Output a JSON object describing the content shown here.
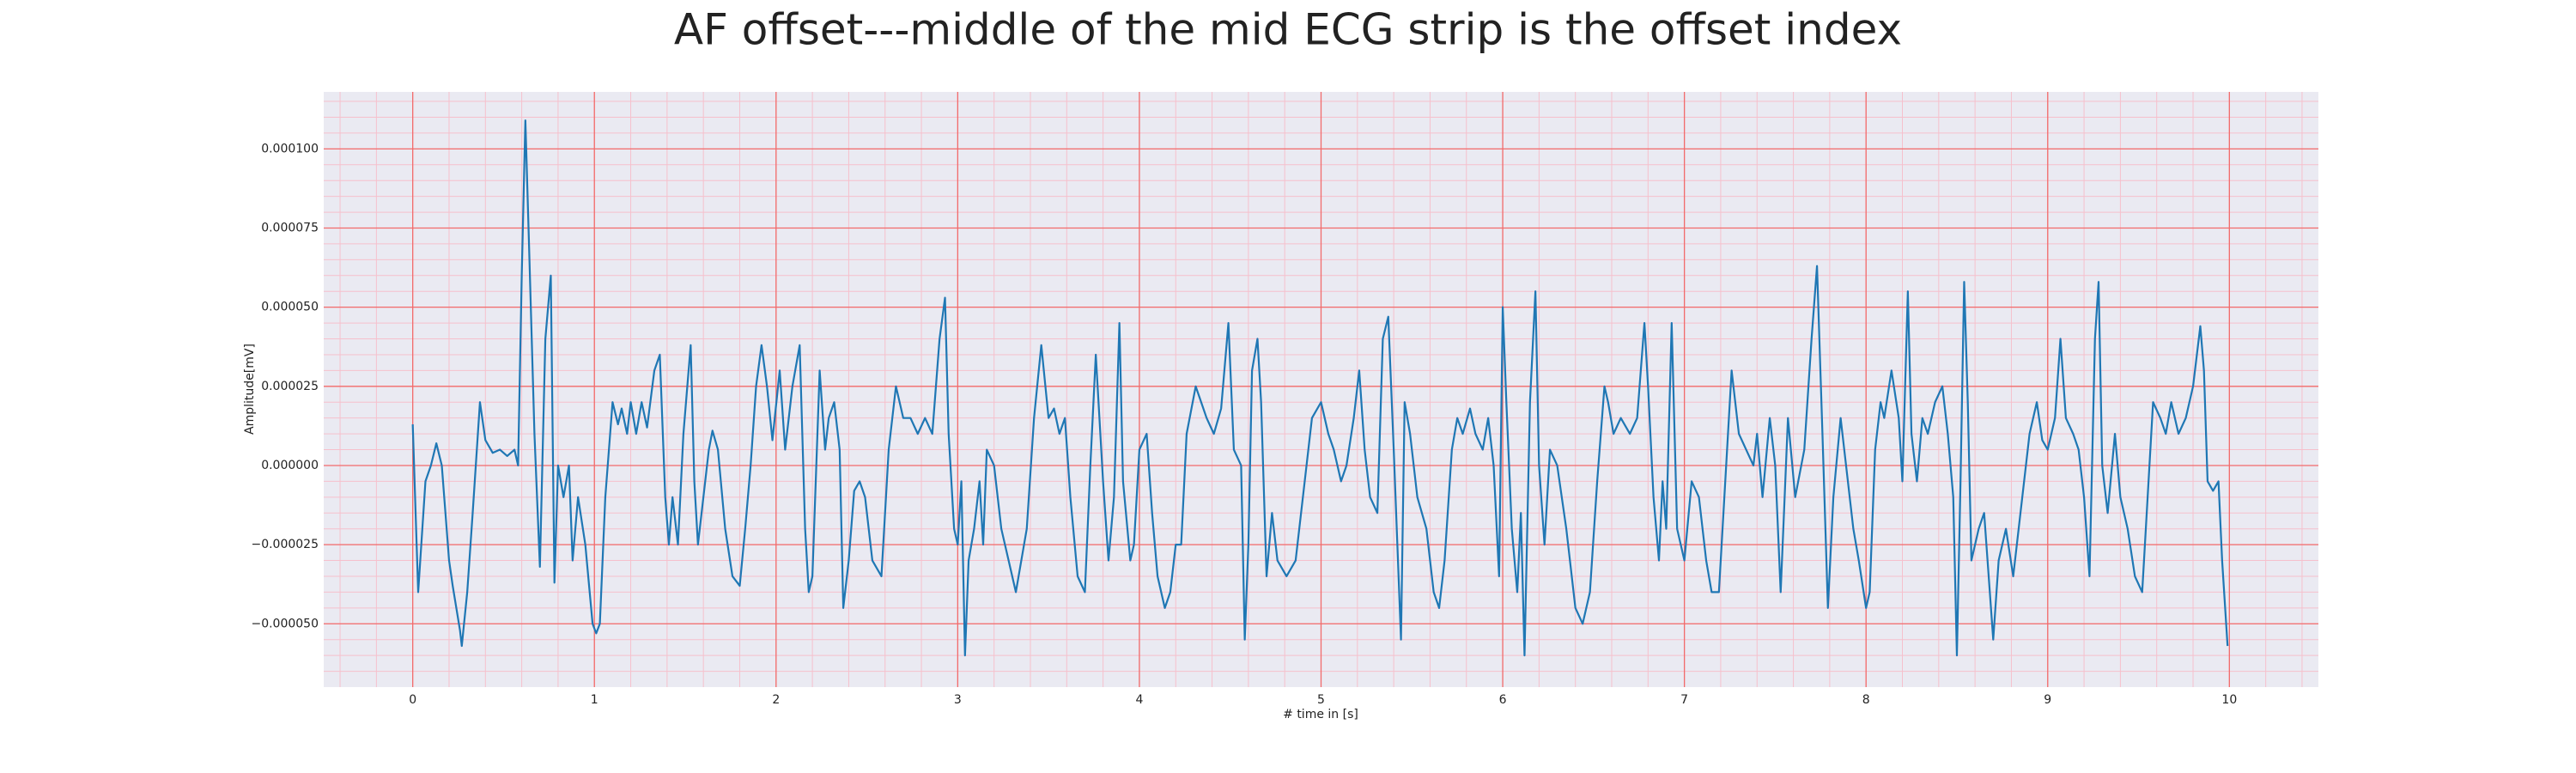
{
  "chart_data": {
    "type": "line",
    "title": "AF offset---middle of the mid ECG strip is the offset index",
    "xlabel": "# time in [s]",
    "ylabel": "Amplitude[mV]",
    "color": "#1f77b4",
    "grid": true,
    "minor_grid": true,
    "xlim": [
      -0.49,
      10.49
    ],
    "ylim": [
      -7e-05,
      0.000118
    ],
    "xticks": [
      0,
      1,
      2,
      3,
      4,
      5,
      6,
      7,
      8,
      9,
      10
    ],
    "yticks": [
      {
        "value": -5e-05,
        "label": "−0.000050"
      },
      {
        "value": -2.5e-05,
        "label": "−0.000025"
      },
      {
        "value": 0,
        "label": "0.000000"
      },
      {
        "value": 2.5e-05,
        "label": "0.000025"
      },
      {
        "value": 5e-05,
        "label": "0.000050"
      },
      {
        "value": 7.5e-05,
        "label": "0.000075"
      },
      {
        "value": 0.0001,
        "label": "0.000100"
      }
    ],
    "x": [
      0.0,
      0.03,
      0.07,
      0.1,
      0.13,
      0.16,
      0.2,
      0.22,
      0.26,
      0.27,
      0.3,
      0.33,
      0.37,
      0.4,
      0.44,
      0.48,
      0.52,
      0.56,
      0.58,
      0.6,
      0.62,
      0.64,
      0.67,
      0.7,
      0.73,
      0.76,
      0.78,
      0.8,
      0.83,
      0.86,
      0.88,
      0.91,
      0.95,
      0.99,
      1.01,
      1.03,
      1.06,
      1.1,
      1.13,
      1.15,
      1.18,
      1.2,
      1.23,
      1.26,
      1.29,
      1.33,
      1.36,
      1.39,
      1.41,
      1.43,
      1.46,
      1.49,
      1.53,
      1.55,
      1.57,
      1.6,
      1.63,
      1.65,
      1.68,
      1.72,
      1.76,
      1.8,
      1.83,
      1.86,
      1.89,
      1.92,
      1.95,
      1.98,
      2.02,
      2.05,
      2.09,
      2.13,
      2.16,
      2.18,
      2.2,
      2.24,
      2.27,
      2.29,
      2.32,
      2.35,
      2.37,
      2.4,
      2.43,
      2.46,
      2.49,
      2.53,
      2.58,
      2.62,
      2.66,
      2.7,
      2.74,
      2.78,
      2.82,
      2.86,
      2.9,
      2.93,
      2.95,
      2.98,
      3.0,
      3.02,
      3.04,
      3.06,
      3.09,
      3.12,
      3.14,
      3.16,
      3.2,
      3.24,
      3.28,
      3.32,
      3.38,
      3.42,
      3.46,
      3.5,
      3.53,
      3.56,
      3.59,
      3.62,
      3.66,
      3.7,
      3.73,
      3.76,
      3.78,
      3.8,
      3.83,
      3.86,
      3.89,
      3.91,
      3.95,
      3.97,
      4.0,
      4.04,
      4.07,
      4.1,
      4.14,
      4.17,
      4.2,
      4.23,
      4.26,
      4.31,
      4.34,
      4.37,
      4.41,
      4.45,
      4.49,
      4.52,
      4.56,
      4.58,
      4.6,
      4.62,
      4.65,
      4.67,
      4.7,
      4.73,
      4.76,
      4.81,
      4.86,
      4.9,
      4.95,
      5.0,
      5.04,
      5.07,
      5.11,
      5.14,
      5.18,
      5.21,
      5.24,
      5.27,
      5.31,
      5.34,
      5.37,
      5.4,
      5.44,
      5.46,
      5.49,
      5.53,
      5.58,
      5.62,
      5.65,
      5.68,
      5.72,
      5.75,
      5.78,
      5.82,
      5.85,
      5.89,
      5.92,
      5.95,
      5.98,
      6.0,
      6.02,
      6.05,
      6.08,
      6.1,
      6.12,
      6.15,
      6.18,
      6.2,
      6.23,
      6.26,
      6.3,
      6.35,
      6.4,
      6.44,
      6.48,
      6.52,
      6.56,
      6.58,
      6.61,
      6.65,
      6.7,
      6.74,
      6.78,
      6.8,
      6.83,
      6.86,
      6.88,
      6.9,
      6.93,
      6.96,
      7.0,
      7.04,
      7.08,
      7.12,
      7.15,
      7.19,
      7.22,
      7.26,
      7.3,
      7.34,
      7.38,
      7.4,
      7.43,
      7.47,
      7.5,
      7.53,
      7.57,
      7.61,
      7.66,
      7.7,
      7.73,
      7.76,
      7.79,
      7.82,
      7.86,
      7.89,
      7.93,
      7.96,
      8.0,
      8.02,
      8.05,
      8.08,
      8.1,
      8.14,
      8.18,
      8.2,
      8.23,
      8.25,
      8.28,
      8.31,
      8.34,
      8.38,
      8.42,
      8.45,
      8.48,
      8.5,
      8.52,
      8.54,
      8.56,
      8.58,
      8.62,
      8.65,
      8.7,
      8.73,
      8.77,
      8.81,
      8.85,
      8.9,
      8.94,
      8.97,
      9.0,
      9.04,
      9.07,
      9.1,
      9.14,
      9.17,
      9.2,
      9.23,
      9.26,
      9.28,
      9.3,
      9.33,
      9.37,
      9.4,
      9.44,
      9.48,
      9.52,
      9.55,
      9.58,
      9.62,
      9.65,
      9.68,
      9.72,
      9.76,
      9.8,
      9.84,
      9.86,
      9.88,
      9.91,
      9.94,
      9.96,
      9.99
    ],
    "values": [
      1.3e-05,
      -4e-05,
      -5e-06,
      0,
      7e-06,
      0,
      -3e-05,
      -3.8e-05,
      -5.2e-05,
      -5.7e-05,
      -4e-05,
      -1.5e-05,
      2e-05,
      8e-06,
      4e-06,
      5e-06,
      3e-06,
      5e-06,
      0,
      6e-05,
      0.000109,
      7e-05,
      1e-05,
      -3.2e-05,
      4e-05,
      6e-05,
      -3.7e-05,
      0,
      -1e-05,
      0,
      -3e-05,
      -1e-05,
      -2.5e-05,
      -5e-05,
      -5.3e-05,
      -5e-05,
      -1e-05,
      2e-05,
      1.3e-05,
      1.8e-05,
      1e-05,
      2e-05,
      1e-05,
      2e-05,
      1.2e-05,
      3e-05,
      3.5e-05,
      -1e-05,
      -2.5e-05,
      -1e-05,
      -2.5e-05,
      1e-05,
      3.8e-05,
      -5e-06,
      -2.5e-05,
      -1e-05,
      5e-06,
      1.1e-05,
      5e-06,
      -2e-05,
      -3.5e-05,
      -3.8e-05,
      -2e-05,
      0,
      2.5e-05,
      3.8e-05,
      2.5e-05,
      8e-06,
      3e-05,
      5e-06,
      2.5e-05,
      3.8e-05,
      -2e-05,
      -4e-05,
      -3.5e-05,
      3e-05,
      5e-06,
      1.5e-05,
      2e-05,
      5e-06,
      -4.5e-05,
      -3e-05,
      -8e-06,
      -5e-06,
      -1e-05,
      -3e-05,
      -3.5e-05,
      5e-06,
      2.5e-05,
      1.5e-05,
      1.5e-05,
      1e-05,
      1.5e-05,
      1e-05,
      4e-05,
      5.3e-05,
      1e-05,
      -2e-05,
      -2.5e-05,
      -5e-06,
      -6e-05,
      -3e-05,
      -2e-05,
      -5e-06,
      -2.5e-05,
      5e-06,
      0,
      -2e-05,
      -3e-05,
      -4e-05,
      -2e-05,
      1.5e-05,
      3.8e-05,
      1.5e-05,
      1.8e-05,
      1e-05,
      1.5e-05,
      -1e-05,
      -3.5e-05,
      -4e-05,
      0,
      3.5e-05,
      1.5e-05,
      -5e-06,
      -3e-05,
      -1e-05,
      4.5e-05,
      -5e-06,
      -3e-05,
      -2.5e-05,
      5e-06,
      1e-05,
      -1.5e-05,
      -3.5e-05,
      -4.5e-05,
      -4e-05,
      -2.5e-05,
      -2.5e-05,
      1e-05,
      2.5e-05,
      2e-05,
      1.5e-05,
      1e-05,
      1.8e-05,
      4.5e-05,
      5e-06,
      0,
      -5.5e-05,
      -2.5e-05,
      3e-05,
      4e-05,
      2e-05,
      -3.5e-05,
      -1.5e-05,
      -3e-05,
      -3.5e-05,
      -3e-05,
      -1e-05,
      1.5e-05,
      2e-05,
      1e-05,
      5e-06,
      -5e-06,
      0,
      1.5e-05,
      3e-05,
      5e-06,
      -1e-05,
      -1.5e-05,
      4e-05,
      4.7e-05,
      5e-06,
      -5.5e-05,
      2e-05,
      1e-05,
      -1e-05,
      -2e-05,
      -4e-05,
      -4.5e-05,
      -3e-05,
      5e-06,
      1.5e-05,
      1e-05,
      1.8e-05,
      1e-05,
      5e-06,
      1.5e-05,
      0,
      -3.5e-05,
      5e-05,
      2e-05,
      -2e-05,
      -4e-05,
      -1.5e-05,
      -6e-05,
      2e-05,
      5.5e-05,
      0,
      -2.5e-05,
      5e-06,
      0,
      -2e-05,
      -4.5e-05,
      -5e-05,
      -4e-05,
      -5e-06,
      2.5e-05,
      2e-05,
      1e-05,
      1.5e-05,
      1e-05,
      1.5e-05,
      4.5e-05,
      2.5e-05,
      -1e-05,
      -3e-05,
      -5e-06,
      -2e-05,
      4.5e-05,
      -2e-05,
      -3e-05,
      -5e-06,
      -1e-05,
      -3e-05,
      -4e-05,
      -4e-05,
      -1e-05,
      3e-05,
      1e-05,
      5e-06,
      0,
      1e-05,
      -1e-05,
      1.5e-05,
      0,
      -4e-05,
      1.5e-05,
      -1e-05,
      5e-06,
      4e-05,
      6.3e-05,
      1e-05,
      -4.5e-05,
      -1e-05,
      1.5e-05,
      0,
      -2e-05,
      -3e-05,
      -4.5e-05,
      -4e-05,
      5e-06,
      2e-05,
      1.5e-05,
      3e-05,
      1.5e-05,
      -5e-06,
      5.5e-05,
      1e-05,
      -5e-06,
      1.5e-05,
      1e-05,
      2e-05,
      2.5e-05,
      1e-05,
      -1e-05,
      -6e-05,
      -5e-06,
      5.8e-05,
      2e-05,
      -3e-05,
      -2e-05,
      -1.5e-05,
      -5.5e-05,
      -3e-05,
      -2e-05,
      -3.5e-05,
      -1.5e-05,
      1e-05,
      2e-05,
      8e-06,
      5e-06,
      1.5e-05,
      4e-05,
      1.5e-05,
      1e-05,
      5e-06,
      -1e-05,
      -3.5e-05,
      4e-05,
      5.8e-05,
      0,
      -1.5e-05,
      1e-05,
      -1e-05,
      -2e-05,
      -3.5e-05,
      -4e-05,
      -1e-05,
      2e-05,
      1.5e-05,
      1e-05,
      2e-05,
      1e-05,
      1.5e-05,
      2.5e-05,
      4.4e-05,
      3e-05,
      -5e-06,
      -8e-06,
      -5e-06,
      -3e-05,
      -5.7e-05
    ]
  }
}
